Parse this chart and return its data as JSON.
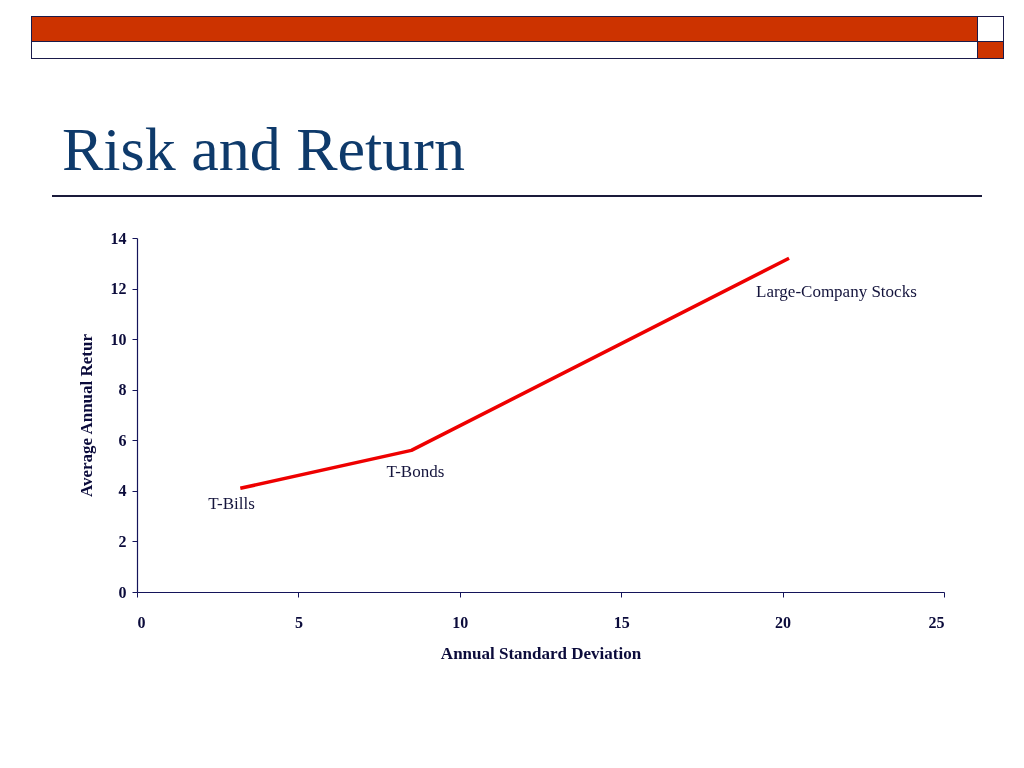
{
  "chart_data": {
    "type": "line",
    "title": "Risk and Return",
    "xlabel": "Annual Standard Deviation",
    "ylabel": "Average Annual Retur",
    "x": [
      3.2,
      8.5,
      20.2
    ],
    "series": [
      {
        "color": "#ee0000",
        "values": [
          4.1,
          5.6,
          13.2
        ]
      }
    ],
    "xlim": [
      0,
      25
    ],
    "xticks": [
      0,
      5,
      10,
      15,
      20,
      25
    ],
    "ylim": [
      0,
      14
    ],
    "yticks": [
      0,
      2,
      4,
      6,
      8,
      10,
      12,
      14
    ],
    "line_style": "solid",
    "annotations": [
      {
        "text": "T-Bills",
        "x": 3.2,
        "y": 4.1
      },
      {
        "text": "T-Bonds",
        "x": 8.5,
        "y": 5.6
      },
      {
        "text": "Large-Company Stocks",
        "x": 20.2,
        "y": 13.2
      }
    ]
  }
}
